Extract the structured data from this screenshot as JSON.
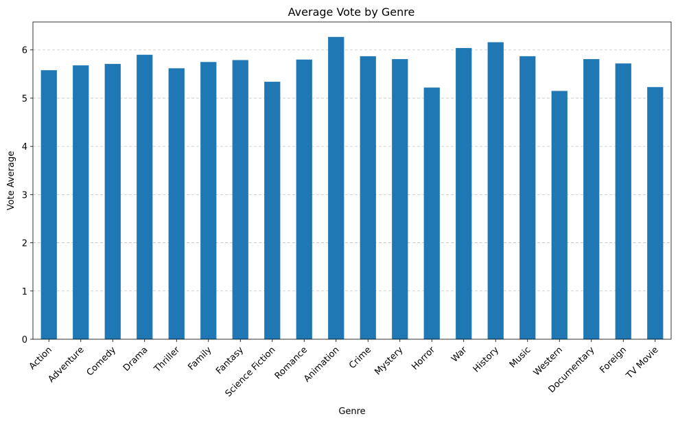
{
  "chart_data": {
    "type": "bar",
    "title": "Average Vote by Genre",
    "xlabel": "Genre",
    "ylabel": "Vote Average",
    "categories": [
      "Action",
      "Adventure",
      "Comedy",
      "Drama",
      "Thriller",
      "Family",
      "Fantasy",
      "Science Fiction",
      "Romance",
      "Animation",
      "Crime",
      "Mystery",
      "Horror",
      "War",
      "History",
      "Music",
      "Western",
      "Documentary",
      "Foreign",
      "TV Movie"
    ],
    "values": [
      5.58,
      5.68,
      5.71,
      5.9,
      5.62,
      5.75,
      5.79,
      5.34,
      5.8,
      6.27,
      5.87,
      5.81,
      5.22,
      6.04,
      6.16,
      5.87,
      5.15,
      5.81,
      5.72,
      5.23
    ],
    "ylim": [
      0,
      6.58
    ],
    "yticks": [
      0,
      1,
      2,
      3,
      4,
      5,
      6
    ],
    "grid": "y-dashed",
    "bar_color": "#1f77b4"
  }
}
